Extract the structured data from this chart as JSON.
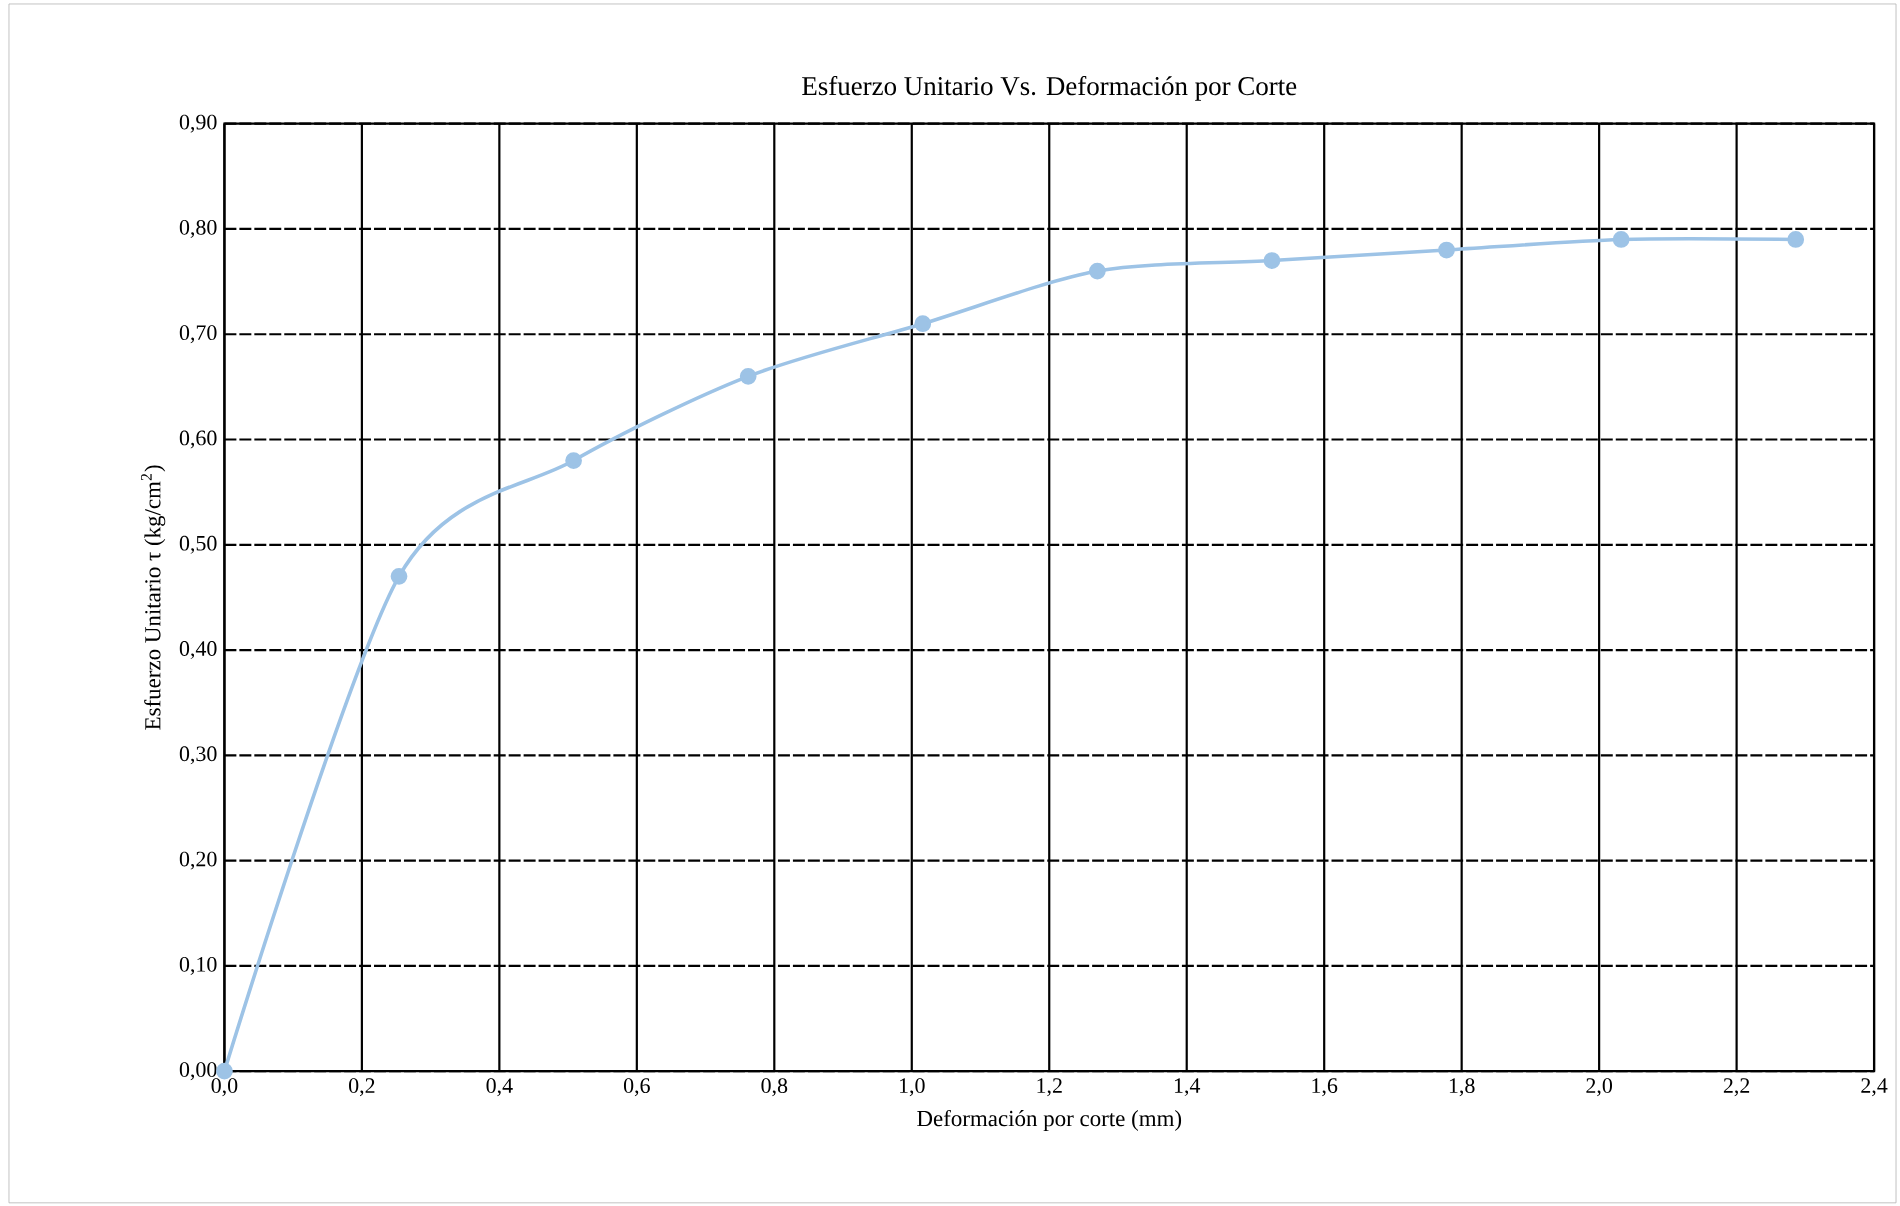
{
  "chart_data": {
    "type": "line",
    "title": "Esfuerzo Unitario Vs. Deformación por Corte",
    "xlabel": "Deformación por corte (mm)",
    "ylabel": "Esfuerzo Unitario τ (kg/cm$^{2}$)",
    "x": [
      0,
      0.254,
      0.508,
      0.762,
      1.016,
      1.27,
      1.524,
      1.778,
      2.032,
      2.286
    ],
    "series": [
      {
        "color": "#9dc3e6",
        "values": [
          0,
          0.47,
          0.58,
          0.66,
          0.71,
          0.76,
          0.77,
          0.78,
          0.79,
          0.79
        ]
      }
    ],
    "xlim": [
      0,
      2.4
    ],
    "ylim": [
      0,
      0.9
    ],
    "xticks": [
      {
        "value": 0,
        "label": "0,0"
      },
      {
        "value": 0.2,
        "label": "0,2"
      },
      {
        "value": 0.4,
        "label": "0,4"
      },
      {
        "value": 0.6,
        "label": "0,6"
      },
      {
        "value": 0.8,
        "label": "0,8"
      },
      {
        "value": 1.0,
        "label": "1,0"
      },
      {
        "value": 1.2,
        "label": "1,2"
      },
      {
        "value": 1.4,
        "label": "1,4"
      },
      {
        "value": 1.6,
        "label": "1,6"
      },
      {
        "value": 1.8,
        "label": "1,8"
      },
      {
        "value": 2.0,
        "label": "2,0"
      },
      {
        "value": 2.2,
        "label": "2,2"
      },
      {
        "value": 2.4,
        "label": "2,4"
      }
    ],
    "yticks": [
      {
        "value": 0,
        "label": "0,00"
      },
      {
        "value": 0.1,
        "label": "0,10"
      },
      {
        "value": 0.2,
        "label": "0,20"
      },
      {
        "value": 0.3,
        "label": "0,30"
      },
      {
        "value": 0.4,
        "label": "0,40"
      },
      {
        "value": 0.5,
        "label": "0,50"
      },
      {
        "value": 0.6,
        "label": "0,60"
      },
      {
        "value": 0.7,
        "label": "0,70"
      },
      {
        "value": 0.8,
        "label": "0,80"
      },
      {
        "value": 0.9,
        "label": "0,90"
      }
    ],
    "grid": true,
    "marker": "circle",
    "line_style": "solid",
    "legend": false
  }
}
